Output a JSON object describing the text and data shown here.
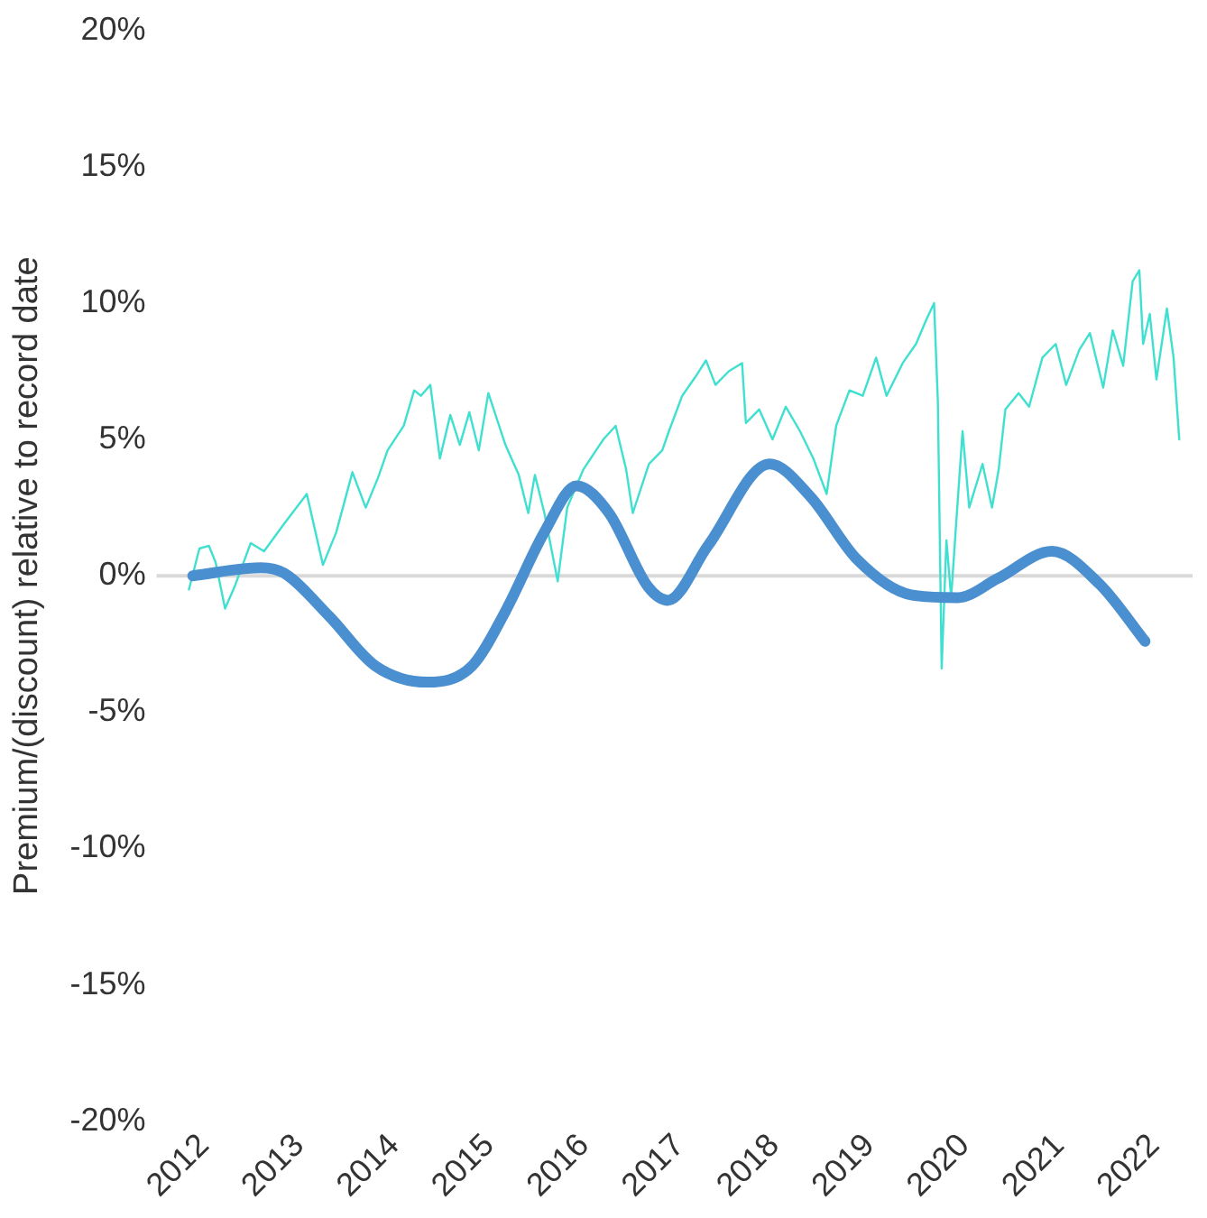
{
  "chart_data": {
    "type": "line",
    "ylabel": "Premium/(discount) relative to record date",
    "xlim": [
      2011.5,
      2022.4
    ],
    "xticks": [
      2012,
      2013,
      2014,
      2015,
      2016,
      2017,
      2018,
      2019,
      2020,
      2021,
      2022
    ],
    "ylim": [
      -20,
      20
    ],
    "yticks": [
      {
        "value": -20,
        "label": "-20%"
      },
      {
        "value": -15,
        "label": "-15%"
      },
      {
        "value": -10,
        "label": "-10%"
      },
      {
        "value": -5,
        "label": "-5%"
      },
      {
        "value": 0,
        "label": "0%"
      },
      {
        "value": 5,
        "label": "5%"
      },
      {
        "value": 10,
        "label": "10%"
      },
      {
        "value": 15,
        "label": "15%"
      },
      {
        "value": 20,
        "label": "20%"
      }
    ],
    "grid": false,
    "legend": false,
    "marker": "none",
    "line_style": "solid",
    "ref_lines": [
      {
        "axis": "y",
        "value": 0,
        "color": "#d9d9d9"
      }
    ],
    "series": [
      {
        "color": "#40e0d0",
        "x": [
          2011.84,
          2011.95,
          2012.05,
          2012.12,
          2012.22,
          2012.32,
          2012.49,
          2012.63,
          2012.84,
          2013.08,
          2013.25,
          2013.39,
          2013.56,
          2013.7,
          2013.83,
          2013.93,
          2014.1,
          2014.21,
          2014.28,
          2014.38,
          2014.48,
          2014.59,
          2014.69,
          2014.79,
          2014.89,
          2014.99,
          2015.17,
          2015.31,
          2015.41,
          2015.48,
          2015.58,
          2015.72,
          2015.82,
          2015.99,
          2016.2,
          2016.33,
          2016.44,
          2016.51,
          2016.68,
          2016.82,
          2016.89,
          2017.03,
          2017.17,
          2017.28,
          2017.38,
          2017.52,
          2017.66,
          2017.7,
          2017.84,
          2017.98,
          2018.12,
          2018.27,
          2018.41,
          2018.55,
          2018.65,
          2018.79,
          2018.93,
          2019.07,
          2019.18,
          2019.35,
          2019.49,
          2019.6,
          2019.68,
          2019.72,
          2019.76,
          2019.81,
          2019.86,
          2019.91,
          2019.98,
          2020.05,
          2020.19,
          2020.29,
          2020.36,
          2020.43,
          2020.57,
          2020.68,
          2020.82,
          2020.96,
          2021.07,
          2021.21,
          2021.32,
          2021.46,
          2021.56,
          2021.67,
          2021.77,
          2021.84,
          2021.88,
          2021.95,
          2022.02,
          2022.13,
          2022.2,
          2022.26
        ],
        "values": [
          -0.5,
          1.0,
          1.1,
          0.5,
          -1.2,
          -0.4,
          1.2,
          0.9,
          1.9,
          3.0,
          0.4,
          1.6,
          3.8,
          2.5,
          3.6,
          4.6,
          5.5,
          6.8,
          6.6,
          7.0,
          4.3,
          5.9,
          4.8,
          6.0,
          4.6,
          6.7,
          4.8,
          3.7,
          2.3,
          3.7,
          2.3,
          -0.2,
          2.5,
          3.9,
          5.0,
          5.5,
          3.9,
          2.3,
          4.1,
          4.6,
          5.3,
          6.6,
          7.3,
          7.9,
          7.0,
          7.5,
          7.8,
          5.6,
          6.1,
          5.0,
          6.2,
          5.3,
          4.3,
          3.0,
          5.5,
          6.8,
          6.6,
          8.0,
          6.6,
          7.8,
          8.5,
          9.4,
          10.0,
          6.4,
          -3.4,
          1.3,
          -0.8,
          1.8,
          5.3,
          2.5,
          4.1,
          2.5,
          3.9,
          6.1,
          6.7,
          6.2,
          8.0,
          8.5,
          7.0,
          8.3,
          8.9,
          6.9,
          9.0,
          7.7,
          10.8,
          11.2,
          8.5,
          9.6,
          7.2,
          9.8,
          8.0,
          5.0
        ]
      },
      {
        "color": "#4a8fd0",
        "x": [
          2011.88,
          2012.6,
          2012.84,
          2013.32,
          2013.8,
          2014.35,
          2014.82,
          2015.17,
          2015.58,
          2015.92,
          2016.26,
          2016.67,
          2016.88,
          2017.3,
          2017.95,
          2018.38,
          2018.87,
          2019.44,
          2019.93,
          2020.35,
          2020.92,
          2021.42,
          2021.9
        ],
        "values": [
          0.0,
          0.3,
          0.1,
          -1.5,
          -3.3,
          -3.9,
          -3.3,
          -1.3,
          1.6,
          3.3,
          2.3,
          -0.4,
          -0.9,
          1.1,
          4.1,
          2.9,
          0.6,
          -0.7,
          -0.8,
          -0.1,
          0.9,
          -0.3,
          -2.4
        ]
      }
    ]
  }
}
